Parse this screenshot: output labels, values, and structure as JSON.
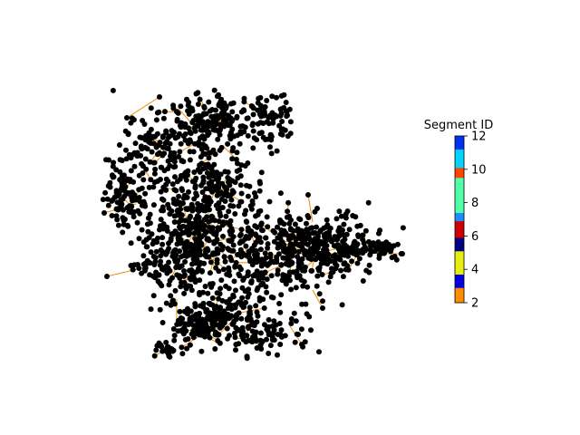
{
  "colorbar": {
    "title": "Segment ID",
    "min": 2,
    "max": 12,
    "ticks": [
      "2",
      "4",
      "6",
      "8",
      "10",
      "12"
    ],
    "bands": [
      {
        "from": 2.0,
        "to": 2.9,
        "color": "#ff8c00"
      },
      {
        "from": 2.9,
        "to": 3.7,
        "color": "#0000e0"
      },
      {
        "from": 3.7,
        "to": 5.1,
        "color": "#e6ee10"
      },
      {
        "from": 5.1,
        "to": 5.9,
        "color": "#000080"
      },
      {
        "from": 5.9,
        "to": 6.9,
        "color": "#d00000"
      },
      {
        "from": 6.9,
        "to": 7.4,
        "color": "#1c8cff"
      },
      {
        "from": 7.4,
        "to": 9.5,
        "color": "#50ffa8"
      },
      {
        "from": 9.5,
        "to": 10.1,
        "color": "#ff4500"
      },
      {
        "from": 10.1,
        "to": 11.2,
        "color": "#00d4ff"
      },
      {
        "from": 11.2,
        "to": 12.0,
        "color": "#0030f0"
      }
    ]
  },
  "network": {
    "node_color": "#000000",
    "edge_color": "#f08c00"
  }
}
